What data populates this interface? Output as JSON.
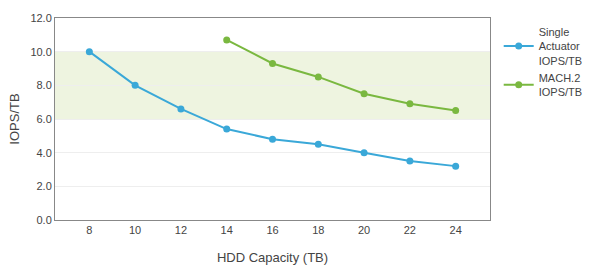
{
  "chart_data": {
    "type": "line",
    "x": [
      8,
      10,
      12,
      14,
      16,
      18,
      20,
      22,
      24
    ],
    "series": [
      {
        "name": "Single\nActuator\nIOPS/TB",
        "color": "#3aa8d8",
        "marker": "circle",
        "values": [
          10.0,
          8.0,
          6.6,
          5.4,
          4.8,
          4.5,
          4.0,
          3.5,
          3.2
        ]
      },
      {
        "name": "MACH.2\nIOPS/TB",
        "color": "#7ab840",
        "marker": "circle",
        "values": [
          null,
          null,
          null,
          10.7,
          9.3,
          8.5,
          7.5,
          6.9,
          6.5
        ]
      }
    ],
    "xlabel": "HDD Capacity (TB)",
    "ylabel": "IOPS/TB",
    "xlim": [
      6.5,
      25.5
    ],
    "xticks": [
      8,
      10,
      12,
      14,
      16,
      18,
      20,
      22,
      24
    ],
    "ylim": [
      0.0,
      12.0
    ],
    "yticks": [
      {
        "value": 0.0,
        "label": "0.0"
      },
      {
        "value": 2.0,
        "label": "2.0"
      },
      {
        "value": 4.0,
        "label": "4.0"
      },
      {
        "value": 6.0,
        "label": "6.0"
      },
      {
        "value": 8.0,
        "label": "8.0"
      },
      {
        "value": 10.0,
        "label": "10.0"
      },
      {
        "value": 12.0,
        "label": "12.0"
      }
    ],
    "band": [
      6.0,
      10.0
    ],
    "band_color": "#eef4e0",
    "grid": "y",
    "legend": "right"
  }
}
